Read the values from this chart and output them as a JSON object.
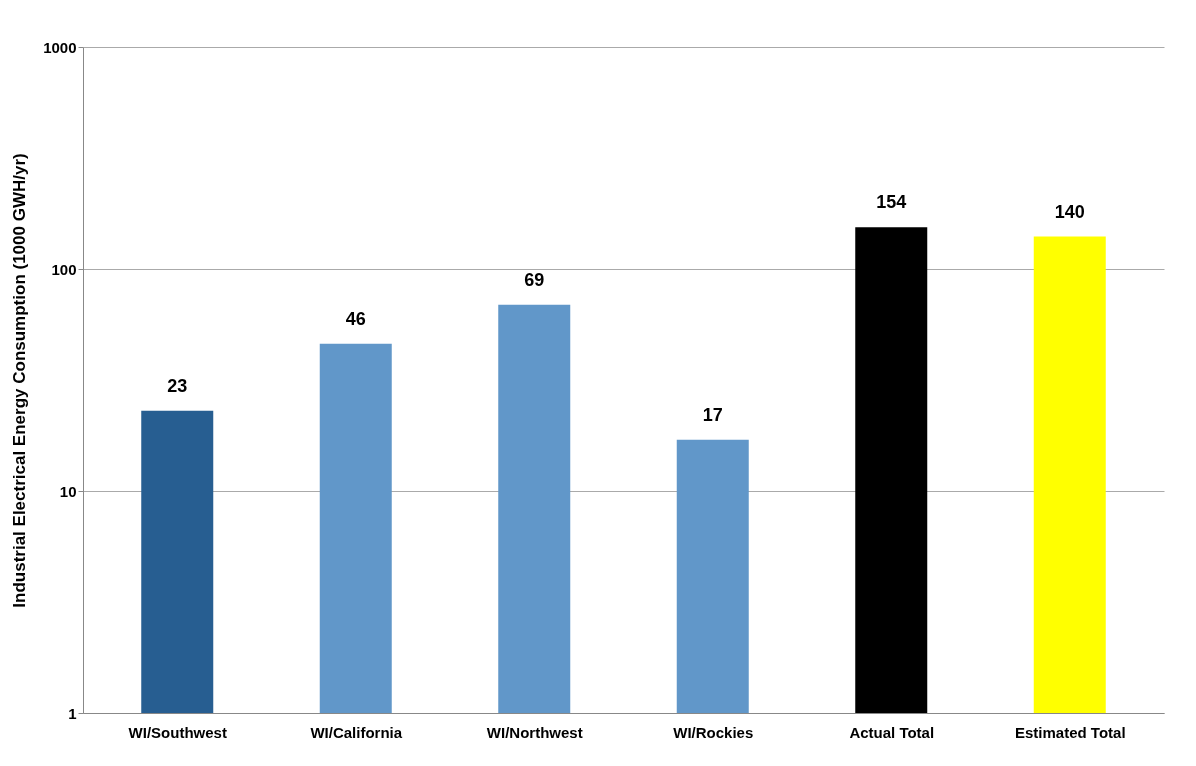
{
  "chart_data": {
    "type": "bar",
    "ylabel": "Industrial Electrical Energy Consumption (1000 GWH/yr)",
    "categories": [
      "WI/Southwest",
      "WI/California",
      "WI/Northwest",
      "WI/Rockies",
      "Actual Total",
      "Estimated Total"
    ],
    "values": [
      23,
      46,
      69,
      17,
      154,
      140
    ],
    "colors": [
      "#275e91",
      "#6197c9",
      "#6197c9",
      "#6197c9",
      "#000000",
      "#ffff00"
    ],
    "log": true,
    "ylim": [
      1,
      1000
    ],
    "yticks": [
      1,
      10,
      100,
      1000
    ],
    "grid": "y",
    "data_labels": true,
    "legend": false
  }
}
